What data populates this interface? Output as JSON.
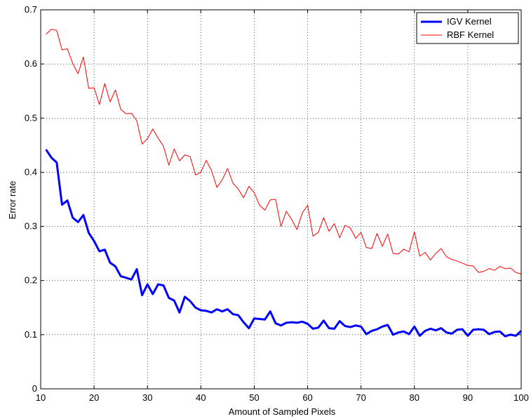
{
  "chart_data": {
    "type": "line",
    "title": "",
    "xlabel": "Amount of Sampled Pixels",
    "ylabel": "Error rate",
    "xlim": [
      10,
      100
    ],
    "ylim": [
      0,
      0.7
    ],
    "xticks": [
      10,
      20,
      30,
      40,
      50,
      60,
      70,
      80,
      90,
      100
    ],
    "xtick_labels": [
      "10",
      "20",
      "30",
      "40",
      "50",
      "60",
      "70",
      "80",
      "90",
      "100"
    ],
    "yticks": [
      0,
      0.1,
      0.2,
      0.3,
      0.4,
      0.5,
      0.6,
      0.7
    ],
    "ytick_labels": [
      "0",
      "0.1",
      "0.2",
      "0.3",
      "0.4",
      "0.5",
      "0.6",
      "0.7"
    ],
    "grid": "dotted",
    "legend_position": "top-right",
    "x": [
      11,
      12,
      13,
      14,
      15,
      16,
      17,
      18,
      19,
      20,
      21,
      22,
      23,
      24,
      25,
      26,
      27,
      28,
      29,
      30,
      31,
      32,
      33,
      34,
      35,
      36,
      37,
      38,
      39,
      40,
      41,
      42,
      43,
      44,
      45,
      46,
      47,
      48,
      49,
      50,
      51,
      52,
      53,
      54,
      55,
      56,
      57,
      58,
      59,
      60,
      61,
      62,
      63,
      64,
      65,
      66,
      67,
      68,
      69,
      70,
      71,
      72,
      73,
      74,
      75,
      76,
      77,
      78,
      79,
      80,
      81,
      82,
      83,
      84,
      85,
      86,
      87,
      88,
      89,
      90,
      91,
      92,
      93,
      94,
      95,
      96,
      97,
      98,
      99,
      100
    ],
    "series": [
      {
        "name": "IGV Kernel",
        "color": "#0000ff",
        "style": "thick",
        "values": [
          0.442,
          0.427,
          0.418,
          0.34,
          0.348,
          0.316,
          0.308,
          0.321,
          0.288,
          0.273,
          0.254,
          0.257,
          0.233,
          0.226,
          0.208,
          0.205,
          0.202,
          0.221,
          0.173,
          0.193,
          0.175,
          0.193,
          0.191,
          0.168,
          0.163,
          0.141,
          0.17,
          0.162,
          0.15,
          0.145,
          0.144,
          0.141,
          0.147,
          0.143,
          0.147,
          0.138,
          0.136,
          0.123,
          0.112,
          0.13,
          0.129,
          0.128,
          0.143,
          0.121,
          0.117,
          0.122,
          0.123,
          0.122,
          0.124,
          0.12,
          0.111,
          0.113,
          0.126,
          0.112,
          0.111,
          0.125,
          0.116,
          0.114,
          0.117,
          0.115,
          0.101,
          0.107,
          0.11,
          0.115,
          0.118,
          0.1,
          0.104,
          0.106,
          0.101,
          0.115,
          0.098,
          0.107,
          0.111,
          0.108,
          0.112,
          0.104,
          0.102,
          0.109,
          0.11,
          0.098,
          0.109,
          0.11,
          0.109,
          0.101,
          0.105,
          0.106,
          0.097,
          0.1,
          0.098,
          0.107
        ]
      },
      {
        "name": "RBF Kernel",
        "color": "#ff0000",
        "style": "thin",
        "values": [
          0.655,
          0.664,
          0.662,
          0.626,
          0.628,
          0.601,
          0.582,
          0.613,
          0.555,
          0.556,
          0.525,
          0.564,
          0.53,
          0.552,
          0.516,
          0.508,
          0.509,
          0.495,
          0.452,
          0.462,
          0.48,
          0.463,
          0.448,
          0.413,
          0.443,
          0.421,
          0.432,
          0.429,
          0.395,
          0.4,
          0.422,
          0.403,
          0.372,
          0.386,
          0.407,
          0.38,
          0.369,
          0.353,
          0.374,
          0.362,
          0.339,
          0.33,
          0.349,
          0.35,
          0.3,
          0.328,
          0.313,
          0.294,
          0.325,
          0.339,
          0.282,
          0.289,
          0.316,
          0.291,
          0.305,
          0.279,
          0.302,
          0.297,
          0.278,
          0.289,
          0.261,
          0.259,
          0.287,
          0.263,
          0.286,
          0.25,
          0.249,
          0.258,
          0.253,
          0.29,
          0.245,
          0.252,
          0.238,
          0.25,
          0.259,
          0.244,
          0.239,
          0.236,
          0.232,
          0.228,
          0.227,
          0.215,
          0.217,
          0.222,
          0.219,
          0.226,
          0.222,
          0.223,
          0.215,
          0.212
        ]
      }
    ]
  }
}
